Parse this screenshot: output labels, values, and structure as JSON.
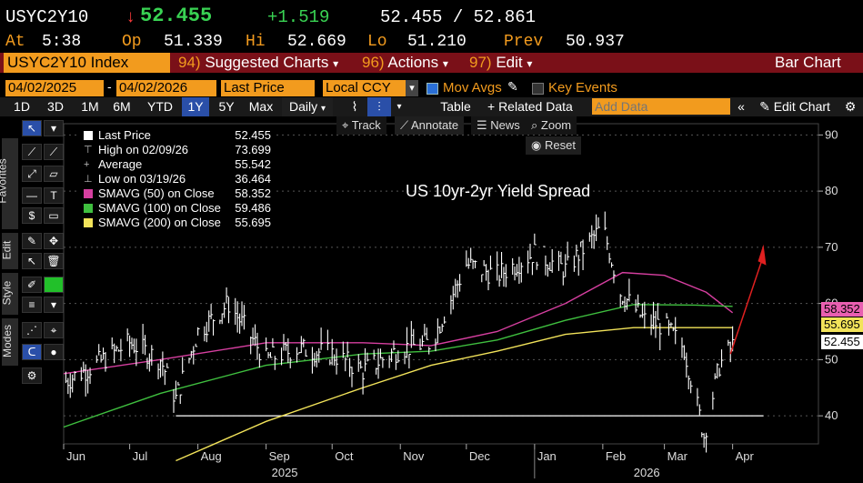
{
  "quote": {
    "ticker": "USYC2Y10",
    "arrow": "↓",
    "last": "52.455",
    "change": "+1.519",
    "bid_ask": "52.455 / 52.861",
    "at_label": "At",
    "at_time": "5:38",
    "op_label": "Op",
    "op": "51.339",
    "hi_label": "Hi",
    "hi": "52.669",
    "lo_label": "Lo",
    "lo": "51.210",
    "prev_label": "Prev",
    "prev": "50.937"
  },
  "menu": {
    "security": "USYC2Y10 Index",
    "suggested_num": "94)",
    "suggested": "Suggested Charts",
    "actions_num": "96)",
    "actions": "Actions",
    "edit_num": "97)",
    "edit": "Edit",
    "chart_type": "Bar Chart",
    "caret": "▾"
  },
  "range": {
    "start_date": "04/02/2025",
    "end_date": "04/02/2026",
    "field": "Last Price",
    "currency": "Local CCY",
    "mov_avgs": "Mov Avgs",
    "key_events": "Key Events"
  },
  "toolbar": {
    "periods": [
      "1D",
      "3D",
      "1M",
      "6M",
      "YTD",
      "1Y",
      "5Y",
      "Max"
    ],
    "selected_period": "1Y",
    "frequency": "Daily",
    "table": "Table",
    "related": "+ Related Data",
    "add_data_placeholder": "Add Data",
    "edit_chart": "Edit Chart"
  },
  "sidebar": {
    "tabs": [
      "Favorites",
      "Edit",
      "Style",
      "Modes"
    ]
  },
  "plot_tools": {
    "track": "Track",
    "annotate": "Annotate",
    "news": "News",
    "zoom": "Zoom",
    "reset": "Reset"
  },
  "legend": {
    "items": [
      {
        "name": "Last Price",
        "value": "52.455",
        "color": "#ffffff"
      },
      {
        "name": "High on 02/09/26",
        "value": "73.699",
        "color": "none"
      },
      {
        "name": "Average",
        "value": "55.542",
        "color": "none"
      },
      {
        "name": "Low on 03/19/26",
        "value": "36.464",
        "color": "none"
      },
      {
        "name": "SMAVG (50)  on Close",
        "value": "58.352",
        "color": "#d63fa0"
      },
      {
        "name": "SMAVG (100)  on Close",
        "value": "59.486",
        "color": "#3fbf3f"
      },
      {
        "name": "SMAVG (200)  on Close",
        "value": "55.695",
        "color": "#f2e35a"
      }
    ]
  },
  "badges": [
    {
      "text": "58.352",
      "color": "#e85fb0"
    },
    {
      "text": "55.695",
      "color": "#f2e35a"
    },
    {
      "text": "52.455",
      "color": "#ffffff"
    }
  ],
  "chart_data": {
    "type": "bar",
    "title": "US 10yr-2yr Yield Spread",
    "ylim": [
      35,
      92
    ],
    "yticks": [
      40,
      50,
      60,
      70,
      80,
      90
    ],
    "x_months": [
      "Jun",
      "Jul",
      "Aug",
      "Sep",
      "Oct",
      "Nov",
      "Dec",
      "Jan",
      "Feb",
      "Mar",
      "Apr"
    ],
    "x_years": [
      "2025",
      "2026"
    ],
    "price_series": {
      "name": "Last Price",
      "color": "#ffffff",
      "dates": [
        "2025-06-01",
        "2025-06-15",
        "2025-07-01",
        "2025-07-15",
        "2025-07-22",
        "2025-08-01",
        "2025-08-15",
        "2025-09-01",
        "2025-09-15",
        "2025-10-01",
        "2025-10-15",
        "2025-11-01",
        "2025-11-15",
        "2025-12-01",
        "2025-12-15",
        "2026-01-01",
        "2026-01-15",
        "2026-02-01",
        "2026-02-09",
        "2026-02-20",
        "2026-03-01",
        "2026-03-10",
        "2026-03-19",
        "2026-03-26",
        "2026-04-01"
      ],
      "values": [
        46,
        49,
        53,
        50,
        43,
        55,
        60,
        50,
        52,
        51,
        48,
        52,
        53,
        67,
        65,
        69,
        66,
        73.7,
        62,
        57,
        56,
        52,
        36.5,
        49,
        52.5
      ]
    },
    "moving_averages": [
      {
        "name": "SMAVG (50)",
        "color": "#d63fa0",
        "dates": [
          "2025-06-01",
          "2025-07-15",
          "2025-09-01",
          "2025-10-15",
          "2025-11-15",
          "2025-12-15",
          "2026-01-15",
          "2026-02-10",
          "2026-03-01",
          "2026-03-20",
          "2026-04-01"
        ],
        "values": [
          47.5,
          50,
          53,
          53,
          52.5,
          55,
          60,
          65.5,
          65,
          62,
          58.35
        ]
      },
      {
        "name": "SMAVG (100)",
        "color": "#3fbf3f",
        "dates": [
          "2025-06-01",
          "2025-07-15",
          "2025-09-01",
          "2025-10-15",
          "2025-11-15",
          "2025-12-15",
          "2026-01-15",
          "2026-02-15",
          "2026-03-15",
          "2026-04-01"
        ],
        "values": [
          38,
          44,
          49,
          51,
          51.5,
          53.5,
          57,
          59.8,
          59.7,
          59.49
        ]
      },
      {
        "name": "SMAVG (200)",
        "color": "#f2e35a",
        "dates": [
          "2025-07-22",
          "2025-09-01",
          "2025-10-15",
          "2025-11-15",
          "2025-12-15",
          "2026-01-15",
          "2026-02-15",
          "2026-04-01"
        ],
        "values": [
          32,
          39,
          45,
          49,
          51.5,
          54.5,
          55.7,
          55.7
        ]
      }
    ]
  }
}
